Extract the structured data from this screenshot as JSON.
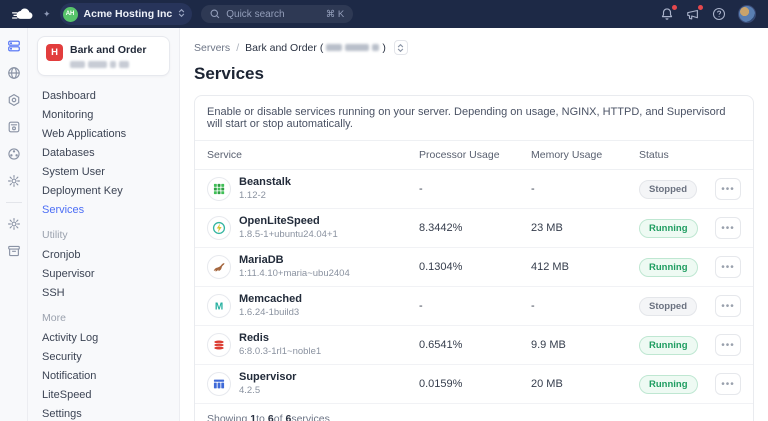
{
  "colors": {
    "topbar": "#1d2946",
    "accent": "#4c6ef5",
    "running": "#1f9d61",
    "stopped": "#6b7280",
    "server_badge_red": "#e23d3d",
    "org_avatar_green": "#57c46b"
  },
  "topbar": {
    "logo_icon": "cloud-logo-icon",
    "org": {
      "initials": "AH",
      "name": "Acme Hosting Inc"
    },
    "search": {
      "placeholder": "Quick search",
      "shortcut": "⌘ K"
    },
    "right_icons": [
      "notifications-bell-icon",
      "announcements-megaphone-icon",
      "help-icon",
      "user-avatar"
    ]
  },
  "rail": {
    "items": [
      {
        "icon": "servers-icon",
        "active": true
      },
      {
        "icon": "globe-icon",
        "active": false
      },
      {
        "icon": "nut-icon",
        "active": false
      },
      {
        "icon": "app-box-icon",
        "active": false
      },
      {
        "icon": "network-icon",
        "active": false
      },
      {
        "icon": "cluster-gear-icon",
        "active": false
      }
    ],
    "items_bottom": [
      {
        "icon": "settings-gear-icon",
        "active": false
      },
      {
        "icon": "archive-icon",
        "active": false
      }
    ]
  },
  "sidebar": {
    "server": {
      "initial": "H",
      "name": "Bark and Order"
    },
    "menu": [
      {
        "label": "Dashboard",
        "active": false
      },
      {
        "label": "Monitoring",
        "active": false
      },
      {
        "label": "Web Applications",
        "active": false
      },
      {
        "label": "Databases",
        "active": false
      },
      {
        "label": "System User",
        "active": false
      },
      {
        "label": "Deployment Key",
        "active": false
      },
      {
        "label": "Services",
        "active": true
      }
    ],
    "sections": [
      {
        "label": "Utility",
        "items": [
          "Cronjob",
          "Supervisor",
          "SSH"
        ]
      },
      {
        "label": "More",
        "items": [
          "Activity Log",
          "Security",
          "Notification",
          "LiteSpeed",
          "Settings"
        ]
      }
    ]
  },
  "main": {
    "breadcrumb": {
      "root": "Servers",
      "separator": "/",
      "current": "Bark and Order",
      "open_paren": "(",
      "close_paren": ")"
    },
    "title": "Services",
    "description": "Enable or disable services running on your server. Depending on usage, NGINX, HTTPD, and Supervisord will start or stop automatically.",
    "table": {
      "headers": [
        "Service",
        "Processor Usage",
        "Memory Usage",
        "Status"
      ],
      "rows": [
        {
          "name": "Beanstalk",
          "version": "1.12-2",
          "cpu": "-",
          "memory": "-",
          "status": "Stopped",
          "icon": "beanstalk-icon"
        },
        {
          "name": "OpenLiteSpeed",
          "version": "1.8.5-1+ubuntu24.04+1",
          "cpu": "8.3442%",
          "memory": "23 MB",
          "status": "Running",
          "icon": "openlitespeed-icon"
        },
        {
          "name": "MariaDB",
          "version": "1:11.4.10+maria~ubu2404",
          "cpu": "0.1304%",
          "memory": "412 MB",
          "status": "Running",
          "icon": "mariadb-icon"
        },
        {
          "name": "Memcached",
          "version": "1.6.24-1build3",
          "cpu": "-",
          "memory": "-",
          "status": "Stopped",
          "icon": "memcached-icon"
        },
        {
          "name": "Redis",
          "version": "6:8.0.3-1rl1~noble1",
          "cpu": "0.6541%",
          "memory": "9.9 MB",
          "status": "Running",
          "icon": "redis-icon"
        },
        {
          "name": "Supervisor",
          "version": "4.2.5",
          "cpu": "0.0159%",
          "memory": "20 MB",
          "status": "Running",
          "icon": "supervisor-icon"
        }
      ],
      "row_actions_icon": "ellipsis-icon",
      "footer": {
        "word_showing": "Showing",
        "from": "1",
        "word_to": "to",
        "to": "6",
        "word_of": "of",
        "total": "6",
        "unit": "services"
      }
    }
  }
}
